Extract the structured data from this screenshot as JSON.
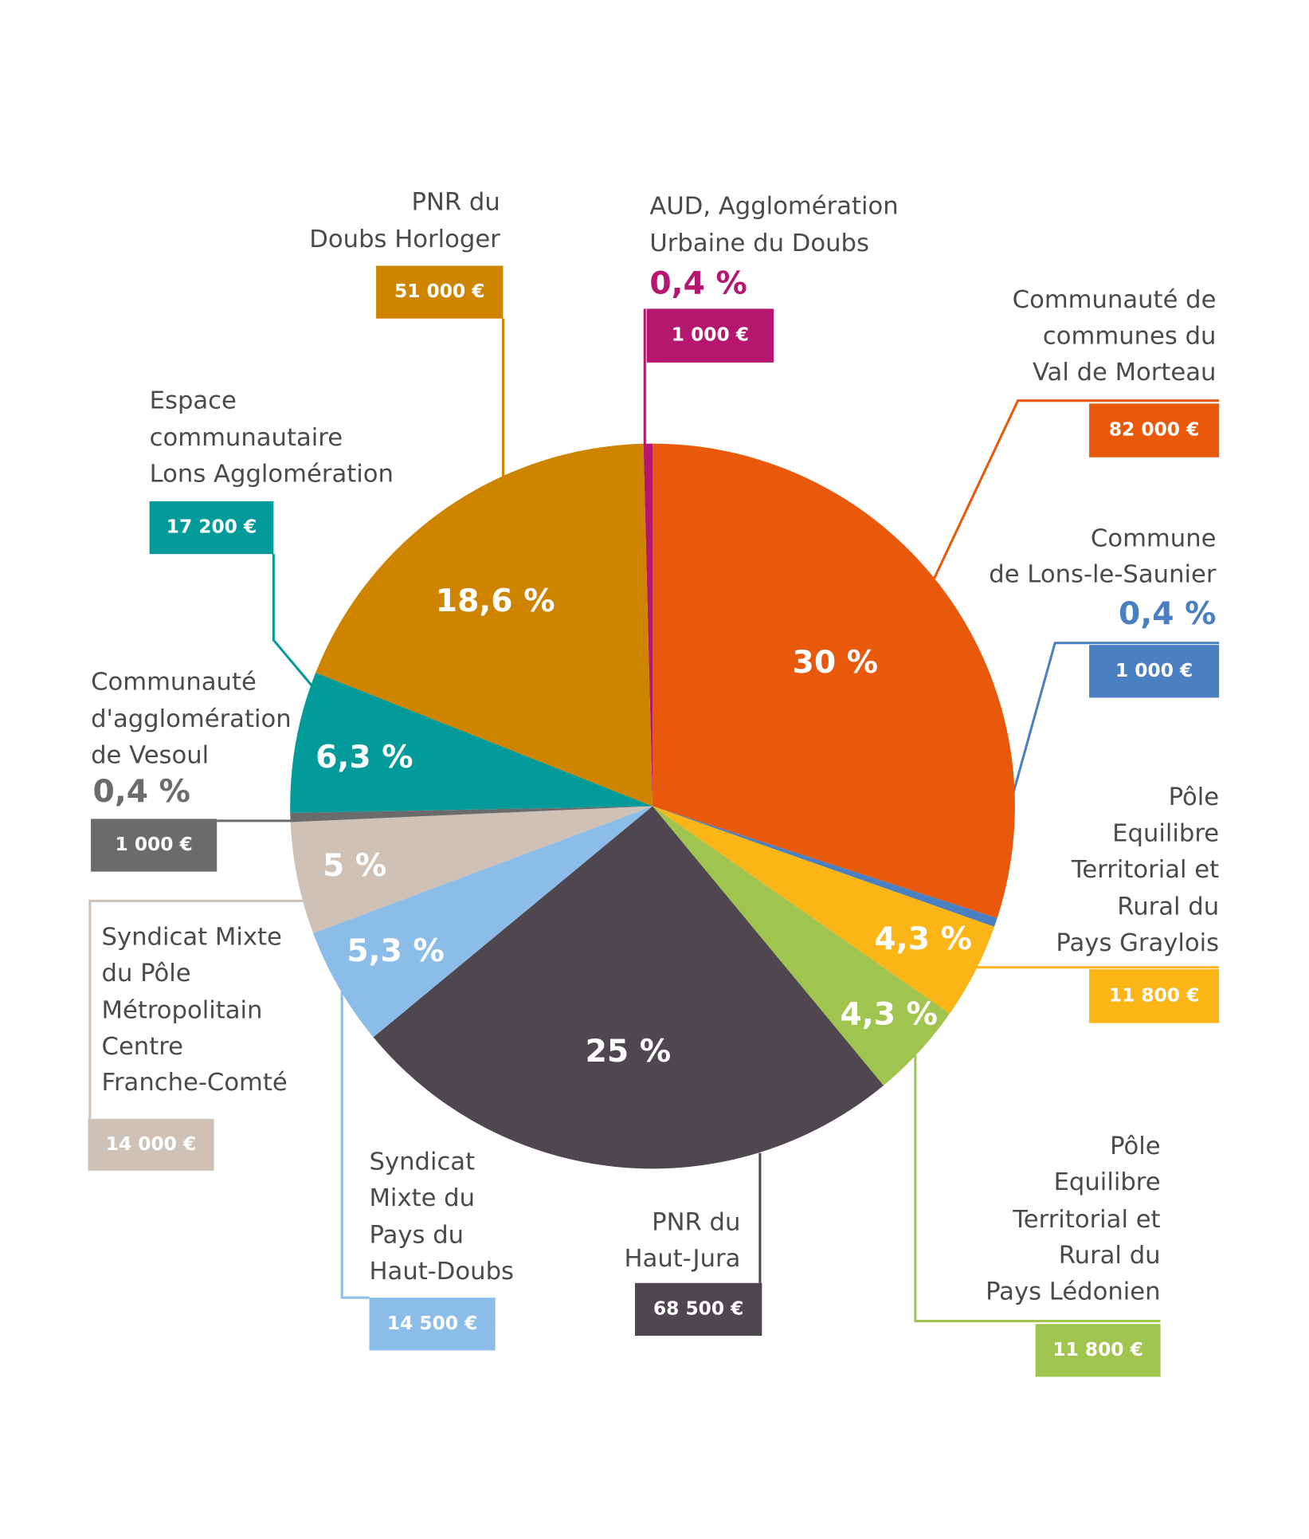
{
  "chart_data": {
    "type": "pie",
    "categories": [
      [
        "AUD, Agglomération",
        "Urbaine du Doubs"
      ],
      [
        "Communauté de",
        "communes du",
        "Val de Morteau"
      ],
      [
        "Commune",
        "de Lons-le-Saunier"
      ],
      [
        "Pôle",
        "Equilibre",
        "Territorial et",
        "Rural du",
        "Pays Graylois"
      ],
      [
        "Pôle",
        "Equilibre",
        "Territorial et",
        "Rural du",
        "Pays Lédonien"
      ],
      [
        "PNR du",
        "Haut-Jura"
      ],
      [
        "Syndicat",
        "Mixte du",
        "Pays du",
        "Haut-Doubs"
      ],
      [
        "Syndicat Mixte",
        "du Pôle",
        "Métropolitain",
        "Centre",
        "Franche-Comté"
      ],
      [
        "Communauté",
        "d'agglomération",
        "de Vesoul"
      ],
      [
        "Espace",
        "communautaire",
        "Lons Agglomération"
      ],
      [
        "PNR du",
        "Doubs Horloger"
      ]
    ],
    "values": [
      0.4,
      30,
      0.4,
      4.3,
      4.3,
      25,
      5.3,
      5,
      0.4,
      6.3,
      18.6
    ],
    "value_labels": [
      "0,4 %",
      "30 %",
      "0,4 %",
      "4,3 %",
      "4,3 %",
      "25 %",
      "5,3 %",
      "5 %",
      "0,4 %",
      "6,3 %",
      "18,6 %"
    ],
    "amount_labels": [
      "1 000 €",
      "82 000 €",
      "1 000 €",
      "11 800 €",
      "11 800 €",
      "68 500 €",
      "14 500 €",
      "14 000 €",
      "1 000 €",
      "17 200 €",
      "51 000 €"
    ],
    "colors": [
      "#b5176e",
      "#e8590c",
      "#4a7fc1",
      "#fbb516",
      "#9fc54e",
      "#4f4750",
      "#8bbde8",
      "#d0c1b6",
      "#6b6b6b",
      "#039a9a",
      "#cf8400"
    ]
  }
}
